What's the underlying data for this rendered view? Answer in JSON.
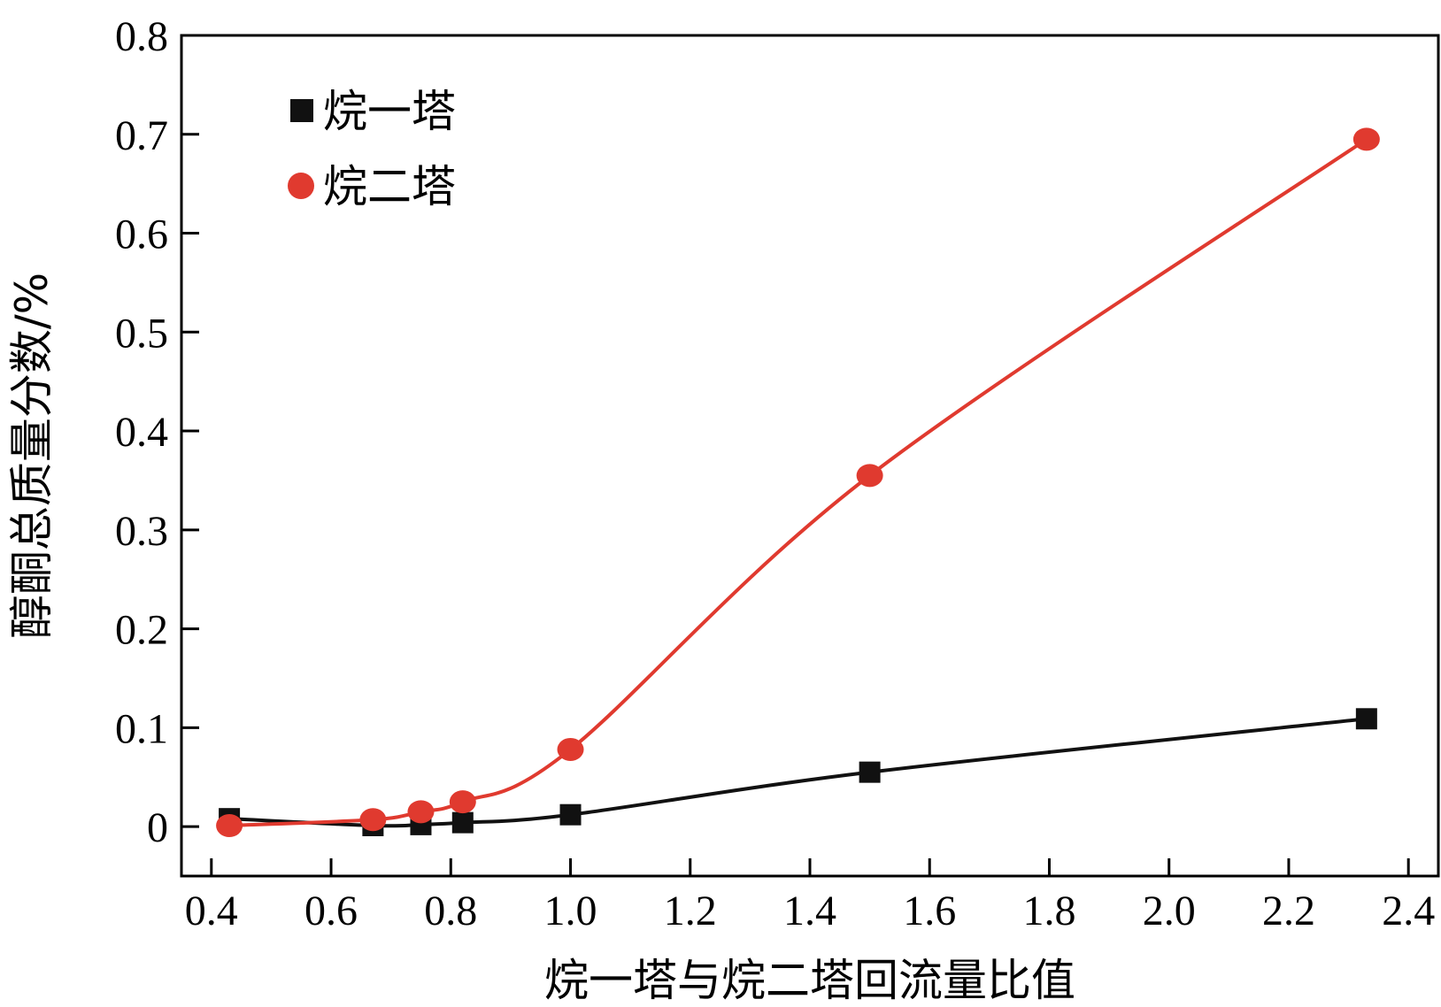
{
  "chart_data": {
    "type": "line",
    "xlabel": "烷一塔与烷二塔回流量比值",
    "ylabel": "醇酮总质量分数/%",
    "xlim": [
      0.35,
      2.45
    ],
    "ylim": [
      -0.05,
      0.8
    ],
    "x_ticks": [
      0.4,
      0.6,
      0.8,
      1.0,
      1.2,
      1.4,
      1.6,
      1.8,
      2.0,
      2.2,
      2.4
    ],
    "x_tick_labels": [
      "0.4",
      "0.6",
      "0.8",
      "1.0",
      "1.2",
      "1.4",
      "1.6",
      "1.8",
      "2.0",
      "2.2",
      "2.4"
    ],
    "y_ticks": [
      0,
      0.1,
      0.2,
      0.3,
      0.4,
      0.5,
      0.6,
      0.7,
      0.8
    ],
    "y_tick_labels": [
      "0",
      "0.1",
      "0.2",
      "0.3",
      "0.4",
      "0.5",
      "0.6",
      "0.7",
      "0.8"
    ],
    "grid": false,
    "legend_position": "top-left",
    "series": [
      {
        "name": "烷一塔",
        "color": "#111111",
        "marker": "square",
        "x": [
          0.43,
          0.67,
          0.75,
          0.82,
          1.0,
          1.5,
          2.33
        ],
        "y": [
          0.008,
          0.001,
          0.002,
          0.004,
          0.012,
          0.055,
          0.109
        ]
      },
      {
        "name": "烷二塔",
        "color": "#e03a2f",
        "marker": "circle",
        "x": [
          0.43,
          0.67,
          0.75,
          0.82,
          1.0,
          1.5,
          2.33
        ],
        "y": [
          0.001,
          0.007,
          0.015,
          0.025,
          0.078,
          0.355,
          0.695
        ]
      }
    ]
  }
}
